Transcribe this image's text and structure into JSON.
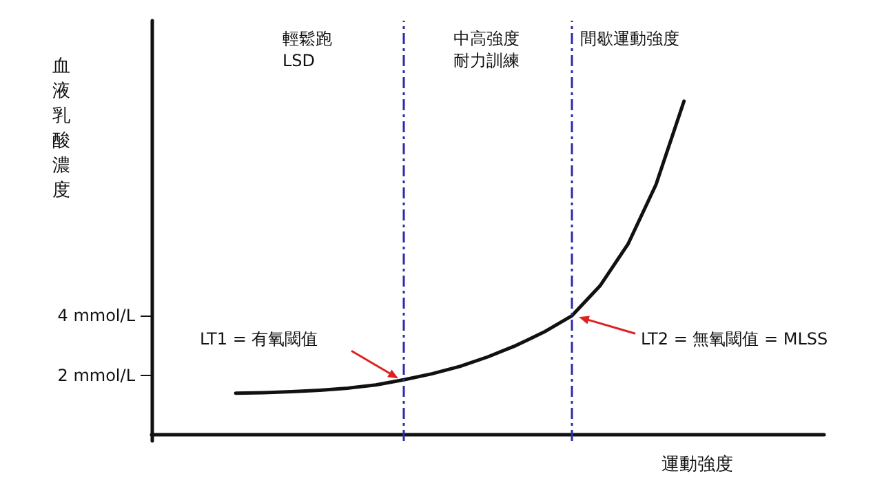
{
  "chart_data": {
    "type": "line",
    "xlabel": "運動強度",
    "ylabel": "血液乳酸濃度",
    "categories": [
      null,
      null,
      null,
      null,
      null,
      null,
      null,
      null,
      null,
      null,
      null,
      null,
      null,
      null,
      null,
      null,
      null,
      null,
      null,
      null,
      null,
      null,
      null,
      null,
      null
    ],
    "series": [
      {
        "color": "#111111",
        "values": [
          null,
          null,
          null,
          1.4,
          1.42,
          1.45,
          1.5,
          1.57,
          1.68,
          1.85,
          2.05,
          2.3,
          2.62,
          3,
          3.45,
          4,
          5,
          6.4,
          8.4,
          11.2,
          null,
          null,
          null,
          null,
          null
        ]
      }
    ],
    "ylim": [
      -0.2,
      13.9
    ],
    "yticks": [
      {
        "value": 2,
        "label": "2 mmol/L"
      },
      {
        "value": 4,
        "label": "4 mmol/L"
      }
    ],
    "tick_labels": "y",
    "grid": false,
    "marker": "none",
    "line_style": "solid",
    "annotations": [
      "輕鬆跑\nLSD",
      "中高強度耐力訓練",
      "間歇運動強度",
      "LT1 = 有氧閾值",
      "LT2 = 無氧閾值 = MLSS"
    ]
  }
}
